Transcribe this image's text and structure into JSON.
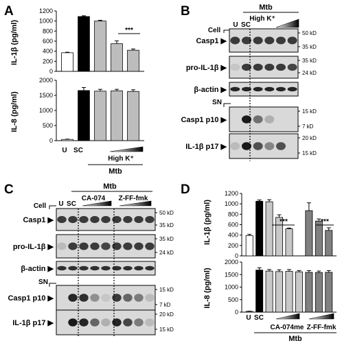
{
  "panels": {
    "A": "A",
    "B": "B",
    "C": "C",
    "D": "D"
  },
  "panel_a": {
    "top_ylabel": "IL-1β (pg/ml)",
    "top_ticks": [
      "0",
      "200",
      "400",
      "600",
      "800",
      "1000",
      "1200"
    ],
    "bottom_ylabel": "IL-8 (pg/ml)",
    "bottom_ticks": [
      "0",
      "500",
      "1000",
      "1500",
      "2000"
    ],
    "sig": "***",
    "lane_u": "U",
    "lane_sc": "SC",
    "highk": "High K⁺",
    "mtb": "Mtb"
  },
  "panel_b": {
    "mtb": "Mtb",
    "highk": "High K⁺",
    "lane_u": "U",
    "lane_sc": "SC",
    "cell": "Cell",
    "sn": "SN",
    "rows": [
      {
        "label": "Casp1",
        "kd": [
          "50 kD",
          "35 kD"
        ]
      },
      {
        "label": "pro-IL-1β",
        "kd": [
          "35 kD",
          "24 kD"
        ]
      },
      {
        "label": "β-actin",
        "kd": []
      },
      {
        "label": "Casp1 p10",
        "kd": [
          "15 kD",
          "7 kD"
        ]
      },
      {
        "label": "IL-1β p17",
        "kd": [
          "20 kD",
          "15 kD"
        ]
      }
    ]
  },
  "panel_c": {
    "mtb": "Mtb",
    "ca": "CA-074",
    "zff": "Z-FF-fmk",
    "lane_u": "U",
    "lane_sc": "SC",
    "cell": "Cell",
    "sn": "SN",
    "rows": [
      {
        "label": "Casp1",
        "kd": [
          "50 kD",
          "35 kD"
        ]
      },
      {
        "label": "pro-IL-1β",
        "kd": [
          "35 kD",
          "24 kD"
        ]
      },
      {
        "label": "β-actin",
        "kd": []
      },
      {
        "label": "Casp1 p10",
        "kd": [
          "15 kD",
          "7 kD"
        ]
      },
      {
        "label": "IL-1β p17",
        "kd": [
          "20 kD",
          "15 kD"
        ]
      }
    ]
  },
  "panel_d": {
    "top_ylabel": "IL-1β (pg/ml)",
    "top_ticks": [
      "0",
      "200",
      "400",
      "600",
      "800",
      "1000",
      "1200"
    ],
    "bottom_ylabel": "IL-8 (pg/ml)",
    "bottom_ticks": [
      "0",
      "500",
      "1000",
      "1500",
      "2000"
    ],
    "sig1": "***",
    "sig2": "***",
    "lane_u": "U",
    "lane_sc": "SC",
    "ca": "CA-074me",
    "zff": "Z-FF-fmk",
    "mtb": "Mtb"
  },
  "chart_data": [
    {
      "type": "bar",
      "panel": "A",
      "ylabel": "IL-1β (pg/ml)",
      "ylim": [
        0,
        1200
      ],
      "categories": [
        "U",
        "SC",
        "High K⁺ 1",
        "High K⁺ 2",
        "High K⁺ 3"
      ],
      "values": [
        370,
        1090,
        1000,
        550,
        420
      ],
      "errors": [
        10,
        15,
        15,
        55,
        25
      ],
      "colors": [
        "#ffffff",
        "#000000",
        "#bdbdbd",
        "#bdbdbd",
        "#bdbdbd"
      ]
    },
    {
      "type": "bar",
      "panel": "A",
      "ylabel": "IL-8 (pg/ml)",
      "ylim": [
        0,
        2000
      ],
      "categories": [
        "U",
        "SC",
        "High K⁺ 1",
        "High K⁺ 2",
        "High K⁺ 3"
      ],
      "values": [
        40,
        1660,
        1640,
        1650,
        1630
      ],
      "errors": [
        10,
        100,
        60,
        50,
        55
      ],
      "colors": [
        "#ffffff",
        "#000000",
        "#bdbdbd",
        "#bdbdbd",
        "#bdbdbd"
      ]
    },
    {
      "type": "bar",
      "panel": "D",
      "ylabel": "IL-1β (pg/ml)",
      "ylim": [
        0,
        1200
      ],
      "categories": [
        "U",
        "SC",
        "CA-074me 1",
        "CA-074me 2",
        "CA-074me 3",
        "CA-074me 4",
        "Z-FF-fmk 1",
        "Z-FF-fmk 2",
        "Z-FF-fmk 3"
      ],
      "values": [
        390,
        1050,
        1040,
        740,
        520,
        null,
        870,
        670,
        490
      ],
      "errors": [
        25,
        25,
        40,
        50,
        15,
        null,
        150,
        40,
        50
      ],
      "colors": [
        "#ffffff",
        "#000000",
        "#c8c8c8",
        "#c8c8c8",
        "#c8c8c8",
        "#c8c8c8",
        "#808080",
        "#808080",
        "#808080"
      ]
    },
    {
      "type": "bar",
      "panel": "D",
      "ylabel": "IL-8 (pg/ml)",
      "ylim": [
        0,
        2000
      ],
      "categories": [
        "U",
        "SC",
        "CA-074me 1",
        "CA-074me 2",
        "CA-074me 3",
        "CA-074me 4",
        "Z-FF-fmk 1",
        "Z-FF-fmk 2",
        "Z-FF-fmk 3"
      ],
      "values": [
        30,
        1680,
        1640,
        1620,
        1630,
        1610,
        1590,
        1580,
        1590
      ],
      "errors": [
        10,
        90,
        60,
        70,
        70,
        50,
        70,
        60,
        70
      ],
      "colors": [
        "#ffffff",
        "#000000",
        "#c8c8c8",
        "#c8c8c8",
        "#c8c8c8",
        "#c8c8c8",
        "#808080",
        "#808080",
        "#808080"
      ]
    }
  ]
}
